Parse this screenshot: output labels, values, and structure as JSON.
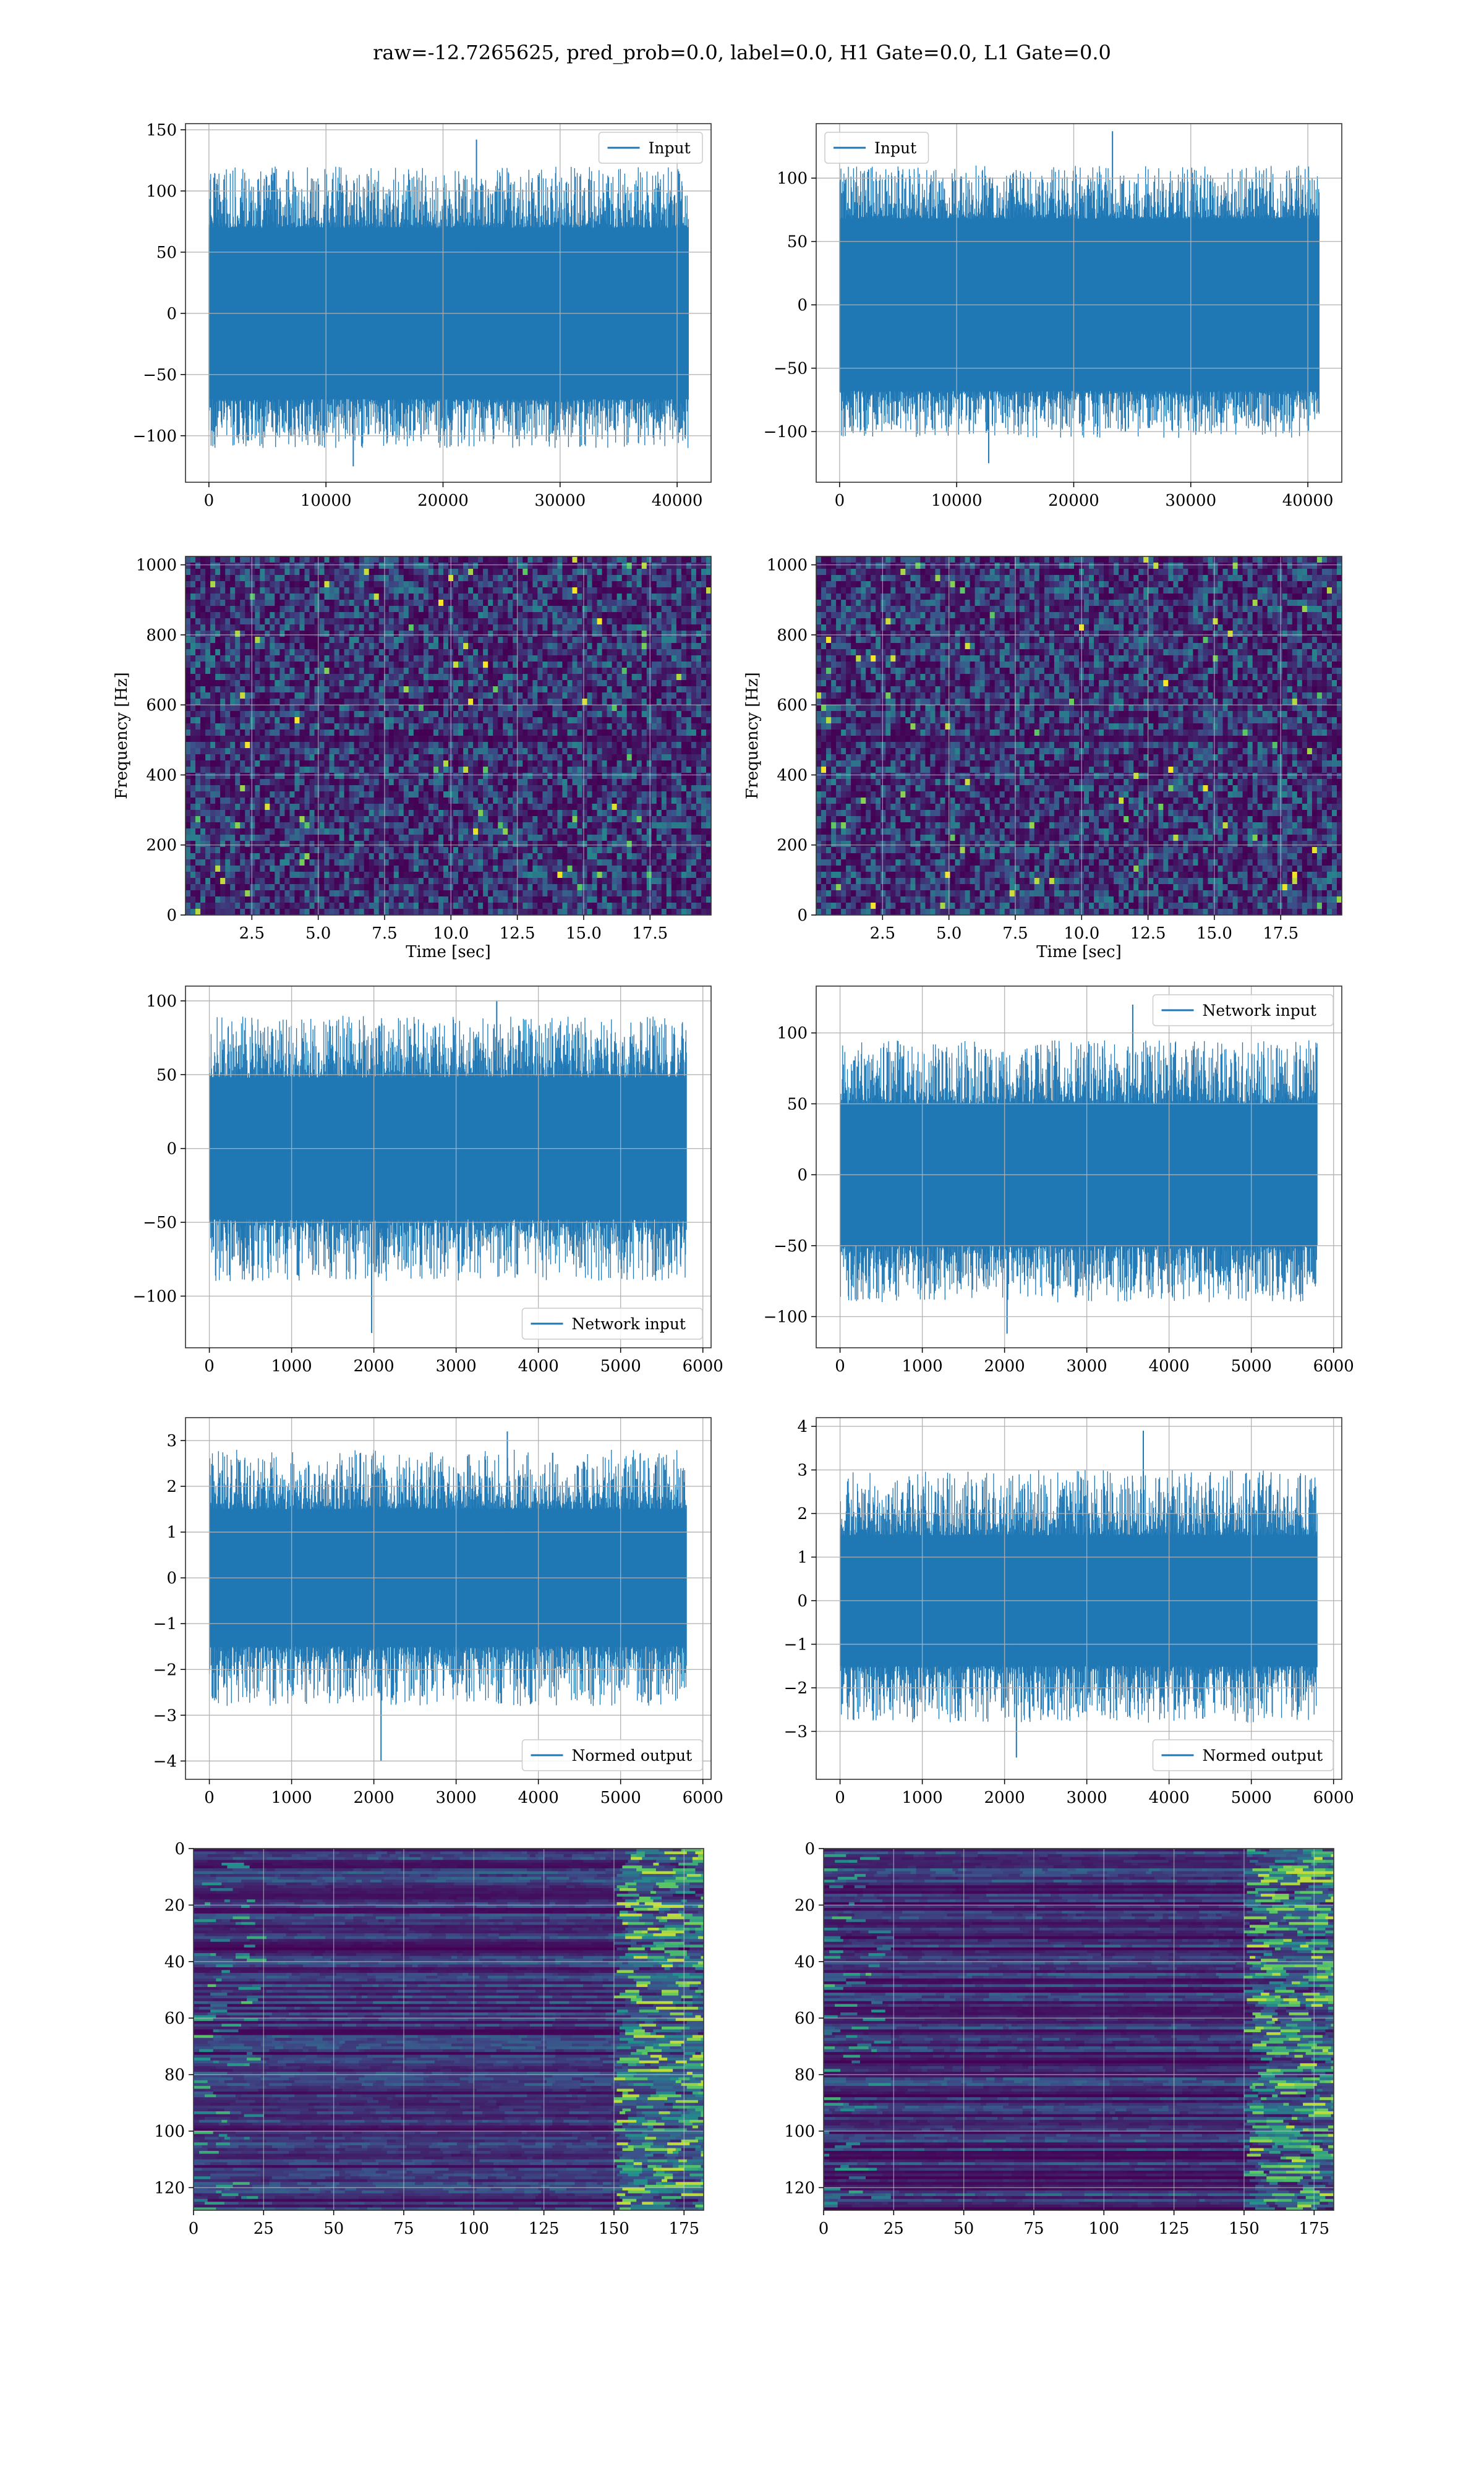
{
  "figure": {
    "title": "raw=-12.7265625, pred_prob=0.0, label=0.0, H1 Gate=0.0, L1 Gate=0.0",
    "colors": {
      "line": "#1f77b4",
      "grid": "#b0b0b0",
      "frame": "#000000",
      "viridis": [
        "#440154",
        "#3b528b",
        "#21918c",
        "#5ec962",
        "#fde725"
      ]
    }
  },
  "chart_data": [
    {
      "id": "r1c1",
      "type": "line",
      "legend": [
        "Input"
      ],
      "legend_loc": "upper right",
      "xlim": [
        -2000,
        42900
      ],
      "ylim": [
        -138,
        155
      ],
      "xticks": [
        0,
        10000,
        20000,
        30000,
        40000
      ],
      "yticks": [
        -100,
        -50,
        0,
        50,
        100,
        150
      ],
      "signal": {
        "n": 40960,
        "envelope": [
          -70,
          70
        ],
        "typical_extremes": [
          -110,
          120
        ],
        "max": 142,
        "min": -125
      }
    },
    {
      "id": "r1c2",
      "type": "line",
      "legend": [
        "Input"
      ],
      "legend_loc": "upper left",
      "xlim": [
        -2000,
        42900
      ],
      "ylim": [
        -140,
        143
      ],
      "xticks": [
        0,
        10000,
        20000,
        30000,
        40000
      ],
      "yticks": [
        -100,
        -50,
        0,
        50,
        100
      ],
      "signal": {
        "n": 40960,
        "envelope": [
          -68,
          68
        ],
        "typical_extremes": [
          -105,
          110
        ],
        "max": 137,
        "min": -125
      }
    },
    {
      "id": "r2c1",
      "type": "heatmap",
      "xlabel": "Time [sec]",
      "ylabel": "Frequency [Hz]",
      "xlim": [
        0,
        19.8
      ],
      "ylim": [
        0,
        1024
      ],
      "xticks": [
        2.5,
        5.0,
        7.5,
        10.0,
        12.5,
        15.0,
        17.5
      ],
      "yticks": [
        0,
        200,
        400,
        600,
        800,
        1000
      ],
      "colormap": "viridis",
      "dark_band_hz": [
        495,
        520
      ]
    },
    {
      "id": "r2c2",
      "type": "heatmap",
      "xlabel": "Time [sec]",
      "ylabel": "Frequency [Hz]",
      "xlim": [
        0,
        19.8
      ],
      "ylim": [
        0,
        1024
      ],
      "xticks": [
        2.5,
        5.0,
        7.5,
        10.0,
        12.5,
        15.0,
        17.5
      ],
      "yticks": [
        0,
        200,
        400,
        600,
        800,
        1000
      ],
      "colormap": "viridis",
      "dark_band_hz": [
        495,
        520
      ]
    },
    {
      "id": "r3c1",
      "type": "line",
      "legend": [
        "Network input"
      ],
      "legend_loc": "lower right",
      "xlim": [
        -290,
        6100
      ],
      "ylim": [
        -135,
        110
      ],
      "xticks": [
        0,
        1000,
        2000,
        3000,
        4000,
        5000,
        6000
      ],
      "yticks": [
        -100,
        -50,
        0,
        50,
        100
      ],
      "signal": {
        "n": 5800,
        "envelope": [
          -48,
          48
        ],
        "typical_extremes": [
          -90,
          90
        ],
        "max": 100,
        "min": -125
      }
    },
    {
      "id": "r3c2",
      "type": "line",
      "legend": [
        "Network input"
      ],
      "legend_loc": "upper right",
      "xlim": [
        -290,
        6100
      ],
      "ylim": [
        -122,
        133
      ],
      "xticks": [
        0,
        1000,
        2000,
        3000,
        4000,
        5000,
        6000
      ],
      "yticks": [
        -100,
        -50,
        0,
        50,
        100
      ],
      "signal": {
        "n": 5800,
        "envelope": [
          -50,
          50
        ],
        "typical_extremes": [
          -90,
          95
        ],
        "max": 120,
        "min": -112
      }
    },
    {
      "id": "r4c1",
      "type": "line",
      "legend": [
        "Normed output"
      ],
      "legend_loc": "lower right",
      "xlim": [
        -290,
        6100
      ],
      "ylim": [
        -4.4,
        3.5
      ],
      "xticks": [
        0,
        1000,
        2000,
        3000,
        4000,
        5000,
        6000
      ],
      "yticks": [
        -4,
        -3,
        -2,
        -1,
        0,
        1,
        2,
        3
      ],
      "signal": {
        "n": 5800,
        "envelope": [
          -1.5,
          1.5
        ],
        "typical_extremes": [
          -2.8,
          2.8
        ],
        "max": 3.2,
        "min": -4.0
      }
    },
    {
      "id": "r4c2",
      "type": "line",
      "legend": [
        "Normed output"
      ],
      "legend_loc": "lower right",
      "xlim": [
        -290,
        6100
      ],
      "ylim": [
        -4.1,
        4.2
      ],
      "xticks": [
        0,
        1000,
        2000,
        3000,
        4000,
        5000,
        6000
      ],
      "yticks": [
        -3,
        -2,
        -1,
        0,
        1,
        2,
        3,
        4
      ],
      "signal": {
        "n": 5800,
        "envelope": [
          -1.5,
          1.5
        ],
        "typical_extremes": [
          -2.8,
          3.0
        ],
        "max": 3.9,
        "min": -3.6
      }
    },
    {
      "id": "r5c1",
      "type": "heatmap",
      "colormap": "viridis",
      "xlim": [
        0,
        182
      ],
      "ylim": [
        128,
        0
      ],
      "y_inverted": true,
      "xticks": [
        0,
        25,
        50,
        75,
        100,
        125,
        150,
        175
      ],
      "yticks": [
        0,
        20,
        40,
        60,
        80,
        100,
        120
      ],
      "rows": 128,
      "cols": 182,
      "bright_cols": [
        150,
        182
      ]
    },
    {
      "id": "r5c2",
      "type": "heatmap",
      "colormap": "viridis",
      "xlim": [
        0,
        182
      ],
      "ylim": [
        128,
        0
      ],
      "y_inverted": true,
      "xticks": [
        0,
        25,
        50,
        75,
        100,
        125,
        150,
        175
      ],
      "yticks": [
        0,
        20,
        40,
        60,
        80,
        100,
        120
      ],
      "rows": 128,
      "cols": 182,
      "bright_cols": [
        150,
        182
      ]
    }
  ]
}
